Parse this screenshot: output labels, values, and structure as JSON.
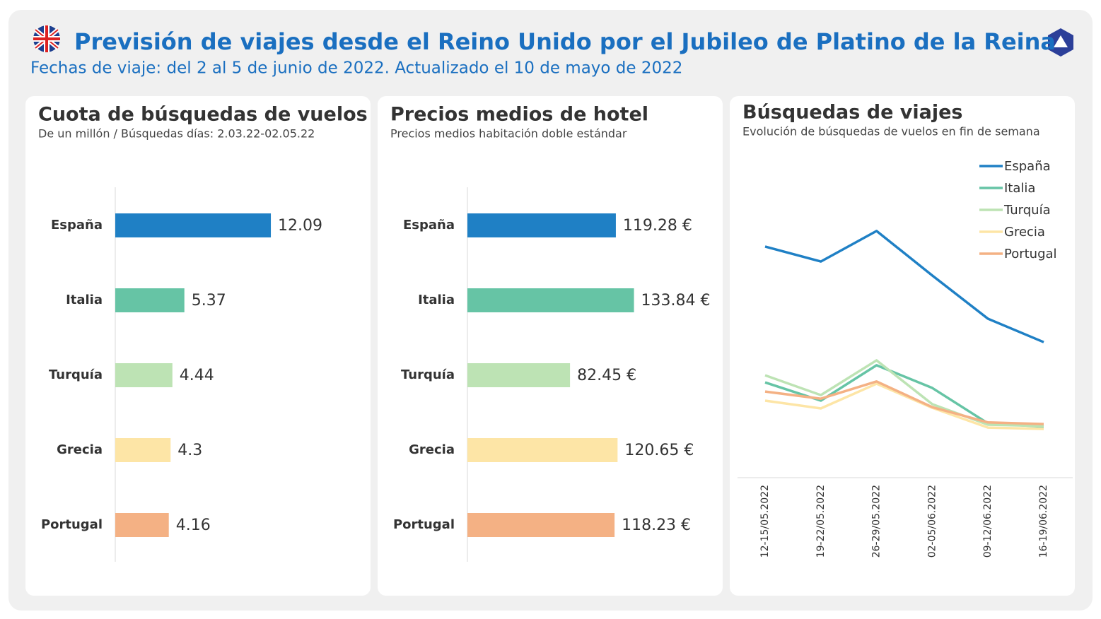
{
  "header": {
    "title": "Previsión de viajes desde el Reino Unido por el Jubileo de Platino de la Reina",
    "subtitle": "Fechas de viaje: del 2 al 5 de junio de 2022. Actualizado el 10 de mayo de 2022"
  },
  "chart_data": [
    {
      "type": "bar",
      "title": "Cuota de búsquedas de vuelos",
      "subtitle": "De un millón / Búsquedas días: 2.03.22-02.05.22",
      "categories": [
        "España",
        "Italia",
        "Turquía",
        "Grecia",
        "Portugal"
      ],
      "values": [
        12.09,
        5.37,
        4.44,
        4.3,
        4.16
      ],
      "colors": [
        "#1f80c5",
        "#66c4a5",
        "#bde3b4",
        "#fde5a6",
        "#f4b184"
      ],
      "xlim": [
        0,
        20
      ]
    },
    {
      "type": "bar",
      "title": "Precios medios de hotel",
      "subtitle": "Precios medios habitación doble estándar",
      "categories": [
        "España",
        "Italia",
        "Turquía",
        "Grecia",
        "Portugal"
      ],
      "values": [
        119.28,
        133.84,
        82.45,
        120.65,
        118.23
      ],
      "value_labels": [
        "119.28 €",
        "133.84 €",
        "82.45 €",
        "120.65 €",
        "118.23 €"
      ],
      "colors": [
        "#1f80c5",
        "#66c4a5",
        "#bde3b4",
        "#fde5a6",
        "#f4b184"
      ],
      "xlim": [
        0,
        150
      ]
    },
    {
      "type": "line",
      "title": "Búsquedas de viajes",
      "subtitle": "Evolución de búsquedas de vuelos en fin de semana",
      "categories": [
        "12-15/05.2022",
        "19-22/05.2022",
        "26-29/05.2022",
        "02-05/06.2022",
        "09-12/06.2022",
        "16-19/06.2022"
      ],
      "ylim": [
        0,
        100
      ],
      "legend": "top-right",
      "series": [
        {
          "name": "España",
          "color": "#1f80c5",
          "values": [
            71.1,
            66.5,
            75.9,
            62.2,
            48.9,
            41.7
          ]
        },
        {
          "name": "Italia",
          "color": "#66c4a5",
          "values": [
            29.3,
            23.7,
            34.6,
            27.6,
            16.7,
            15.7
          ]
        },
        {
          "name": "Turquía",
          "color": "#bde3b4",
          "values": [
            31.5,
            25.4,
            36.1,
            22.6,
            16.3,
            15.9
          ]
        },
        {
          "name": "Grecia",
          "color": "#fde5a6",
          "values": [
            23.7,
            21.3,
            28.9,
            21.5,
            15.4,
            15.0
          ]
        },
        {
          "name": "Portugal",
          "color": "#f4b184",
          "values": [
            26.5,
            24.3,
            29.6,
            21.7,
            17.0,
            16.5
          ]
        }
      ]
    }
  ]
}
